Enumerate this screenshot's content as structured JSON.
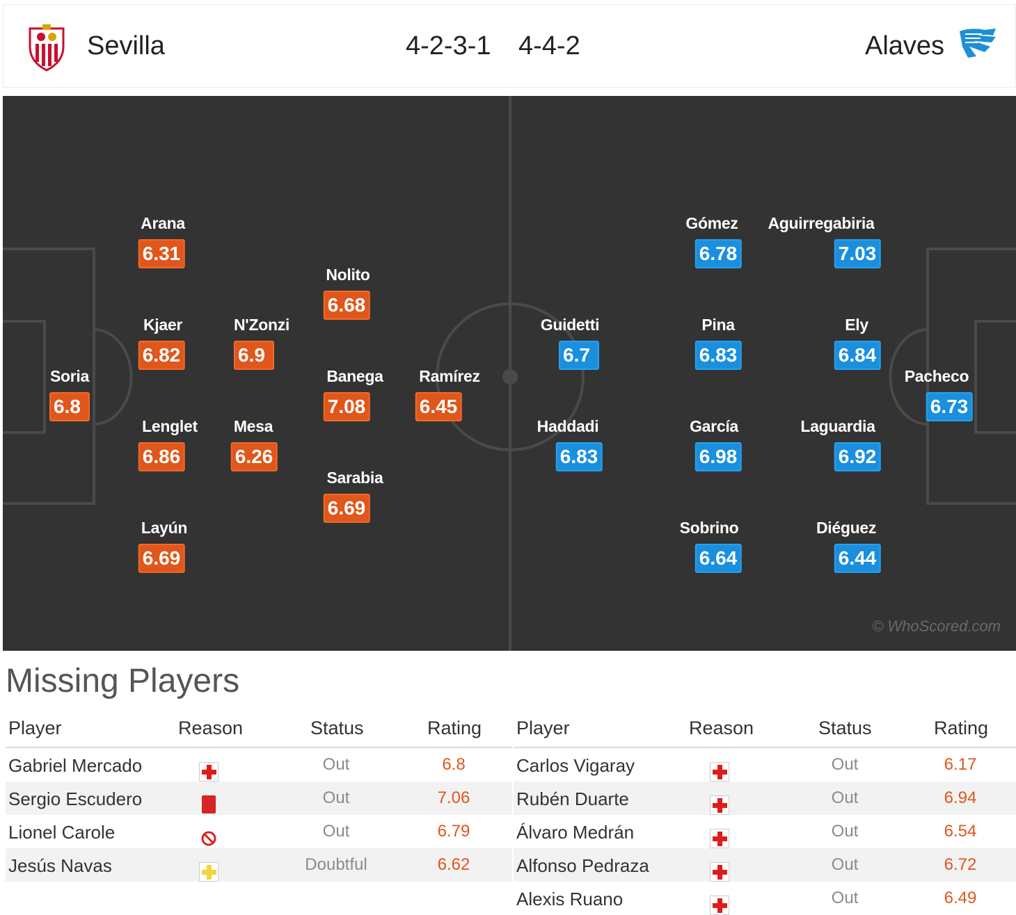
{
  "header": {
    "home_team": "Sevilla",
    "away_team": "Alaves",
    "home_formation": "4-2-3-1",
    "away_formation": "4-4-2",
    "home_crest_icon": "sevilla-crest-icon",
    "away_crest_icon": "alaves-crest-icon"
  },
  "colors": {
    "home_rating_bg": "#e0561b",
    "away_rating_bg": "#1a8fde",
    "pitch_bg": "#333333",
    "missing_rating_text": "#e0561b"
  },
  "pitch": {
    "watermark": "© WhoScored.com",
    "home_players": [
      {
        "name": "Arana",
        "rating": "6.31"
      },
      {
        "name": "Kjaer",
        "rating": "6.82"
      },
      {
        "name": "Lenglet",
        "rating": "6.86"
      },
      {
        "name": "Layún",
        "rating": "6.69"
      },
      {
        "name": "Soria",
        "rating": "6.8"
      },
      {
        "name": "N'Zonzi",
        "rating": "6.9"
      },
      {
        "name": "Mesa",
        "rating": "6.26"
      },
      {
        "name": "Nolito",
        "rating": "6.68"
      },
      {
        "name": "Banega",
        "rating": "7.08"
      },
      {
        "name": "Sarabia",
        "rating": "6.69"
      },
      {
        "name": "Ramírez",
        "rating": "6.45"
      }
    ],
    "away_players": [
      {
        "name": "Guidetti",
        "rating": "6.7"
      },
      {
        "name": "Haddadi",
        "rating": "6.83"
      },
      {
        "name": "Gómez",
        "rating": "6.78"
      },
      {
        "name": "Pina",
        "rating": "6.83"
      },
      {
        "name": "García",
        "rating": "6.98"
      },
      {
        "name": "Sobrino",
        "rating": "6.64"
      },
      {
        "name": "Aguirregabiria",
        "rating": "7.03"
      },
      {
        "name": "Ely",
        "rating": "6.84"
      },
      {
        "name": "Laguardia",
        "rating": "6.92"
      },
      {
        "name": "Diéguez",
        "rating": "6.44"
      },
      {
        "name": "Pacheco",
        "rating": "6.73"
      }
    ]
  },
  "missing": {
    "title": "Missing Players",
    "headers": {
      "player": "Player",
      "reason": "Reason",
      "status": "Status",
      "rating": "Rating"
    },
    "home": [
      {
        "player": "Gabriel Mercado",
        "reason_icon": "injury-icon",
        "status": "Out",
        "rating": "6.8"
      },
      {
        "player": "Sergio Escudero",
        "reason_icon": "red-card-icon",
        "status": "Out",
        "rating": "7.06"
      },
      {
        "player": "Lionel Carole",
        "reason_icon": "suspended-icon",
        "status": "Out",
        "rating": "6.79"
      },
      {
        "player": "Jesús Navas",
        "reason_icon": "doubtful-injury-icon",
        "status": "Doubtful",
        "rating": "6.62"
      }
    ],
    "away": [
      {
        "player": "Carlos Vigaray",
        "reason_icon": "injury-icon",
        "status": "Out",
        "rating": "6.17"
      },
      {
        "player": "Rubén Duarte",
        "reason_icon": "injury-icon",
        "status": "Out",
        "rating": "6.94"
      },
      {
        "player": "Álvaro Medrán",
        "reason_icon": "injury-icon",
        "status": "Out",
        "rating": "6.54"
      },
      {
        "player": "Alfonso Pedraza",
        "reason_icon": "injury-icon",
        "status": "Out",
        "rating": "6.72"
      },
      {
        "player": "Alexis Ruano",
        "reason_icon": "injury-icon",
        "status": "Out",
        "rating": "6.49"
      }
    ]
  }
}
